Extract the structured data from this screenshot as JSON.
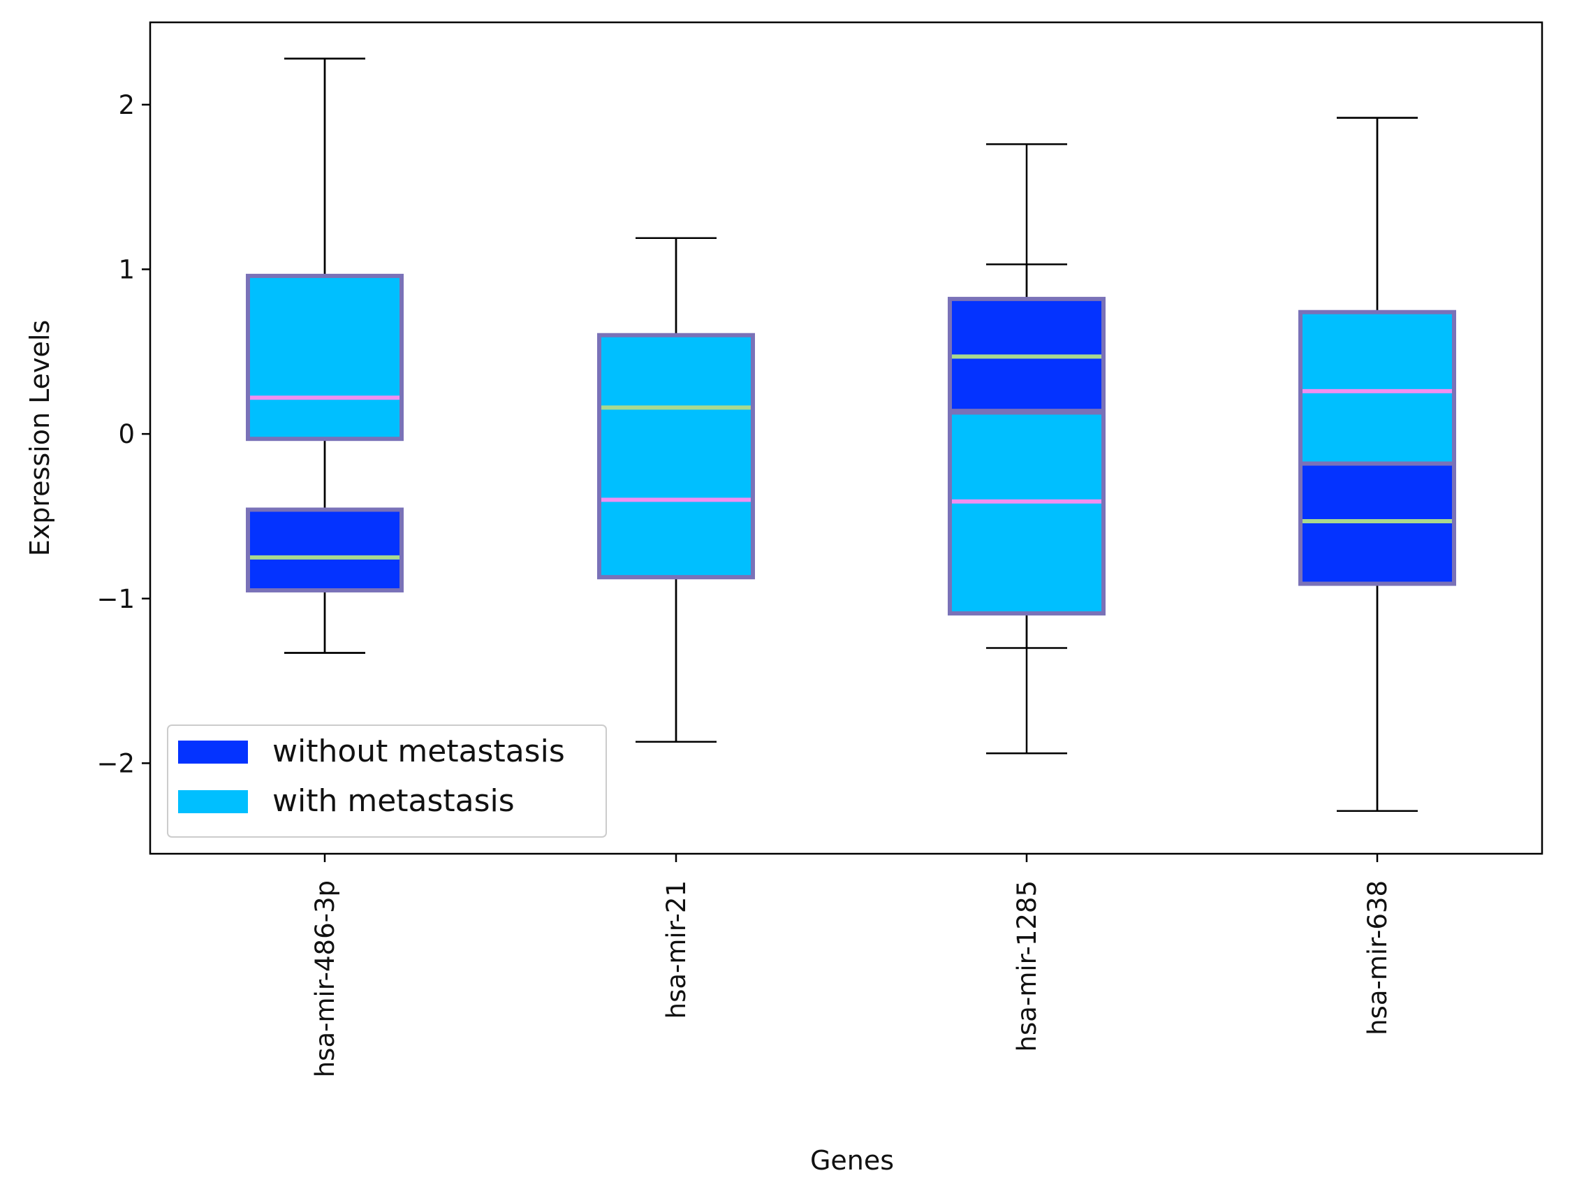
{
  "chart_data": {
    "type": "boxplot",
    "title": "",
    "xlabel": "Genes",
    "ylabel": "Expression Levels",
    "ylim": [
      -2.55,
      2.5
    ],
    "yticks": [
      -2,
      -1,
      0,
      1,
      2
    ],
    "ytick_labels": [
      "−2",
      "−1",
      "0",
      "1",
      "2"
    ],
    "categories": [
      "hsa-mir-486-3p",
      "hsa-mir-21",
      "hsa-mir-1285",
      "hsa-mir-638"
    ],
    "series": [
      {
        "name": "without metastasis",
        "color": "#0433ff",
        "median_color": "#a9d98f",
        "stats": [
          {
            "whisker_low": -1.33,
            "q1": -0.95,
            "median": -0.75,
            "q3": -0.46,
            "whisker_high": 2.28
          },
          {
            "whisker_low": -1.87,
            "q1": -0.87,
            "median": 0.16,
            "q3": 0.53,
            "whisker_high": 1.19
          },
          {
            "whisker_low": -1.3,
            "q1": 0.14,
            "median": 0.47,
            "q3": 0.82,
            "whisker_high": 1.03
          },
          {
            "whisker_low": -2.29,
            "q1": -0.91,
            "median": -0.53,
            "q3": -0.18,
            "whisker_high": 1.92
          }
        ]
      },
      {
        "name": "with metastasis",
        "color": "#00bfff",
        "median_color": "#f08ff0",
        "stats": [
          {
            "whisker_low": -1.33,
            "q1": -0.03,
            "median": 0.22,
            "q3": 0.96,
            "whisker_high": 2.28
          },
          {
            "whisker_low": -1.87,
            "q1": -0.87,
            "median": -0.4,
            "q3": 0.6,
            "whisker_high": 1.19
          },
          {
            "whisker_low": -1.94,
            "q1": -1.09,
            "median": -0.41,
            "q3": 0.13,
            "whisker_high": 1.76
          },
          {
            "whisker_low": -2.29,
            "q1": -0.18,
            "median": 0.26,
            "q3": 0.74,
            "whisker_high": 1.92
          }
        ]
      }
    ],
    "legend": {
      "position": "lower-left",
      "entries": [
        {
          "label": "without metastasis",
          "color": "#0433ff"
        },
        {
          "label": "with metastasis",
          "color": "#00bfff"
        }
      ]
    },
    "box_edge_color": "#7a72b8",
    "grid": false
  }
}
